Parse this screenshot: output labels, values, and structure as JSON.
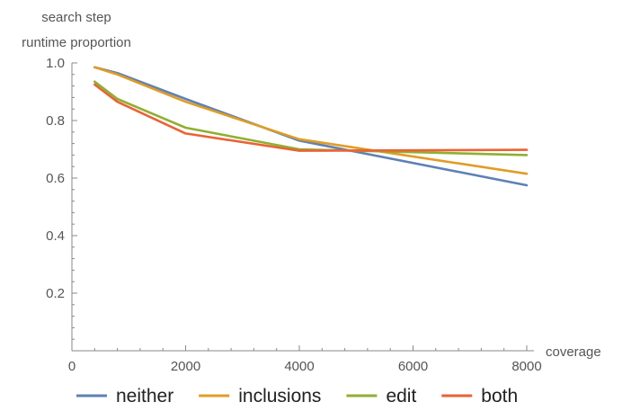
{
  "chart_data": {
    "type": "line",
    "ylabel_lines": [
      "search step",
      "runtime proportion"
    ],
    "xlabel": "coverage",
    "xlim": [
      0,
      8000
    ],
    "ylim": [
      0,
      1.0
    ],
    "x_ticks": [
      0,
      2000,
      4000,
      6000,
      8000
    ],
    "y_ticks": [
      0.2,
      0.4,
      0.6,
      0.8,
      1.0
    ],
    "x_tick_labels": [
      "0",
      "2000",
      "4000",
      "6000",
      "8000"
    ],
    "y_tick_labels": [
      "0.2",
      "0.4",
      "0.6",
      "0.8",
      "1.0"
    ],
    "grid": false,
    "legend_position": "bottom",
    "x": [
      400,
      800,
      2000,
      4000,
      8000
    ],
    "series": [
      {
        "name": "neither",
        "color": "#5E81B5",
        "values": [
          0.985,
          0.965,
          0.875,
          0.73,
          0.575
        ]
      },
      {
        "name": "inclusions",
        "color": "#E19C24",
        "values": [
          0.985,
          0.96,
          0.865,
          0.735,
          0.615
        ]
      },
      {
        "name": "edit",
        "color": "#8FB032",
        "values": [
          0.935,
          0.875,
          0.775,
          0.7,
          0.68
        ]
      },
      {
        "name": "both",
        "color": "#EB6235",
        "values": [
          0.925,
          0.865,
          0.755,
          0.695,
          0.698
        ]
      }
    ]
  }
}
